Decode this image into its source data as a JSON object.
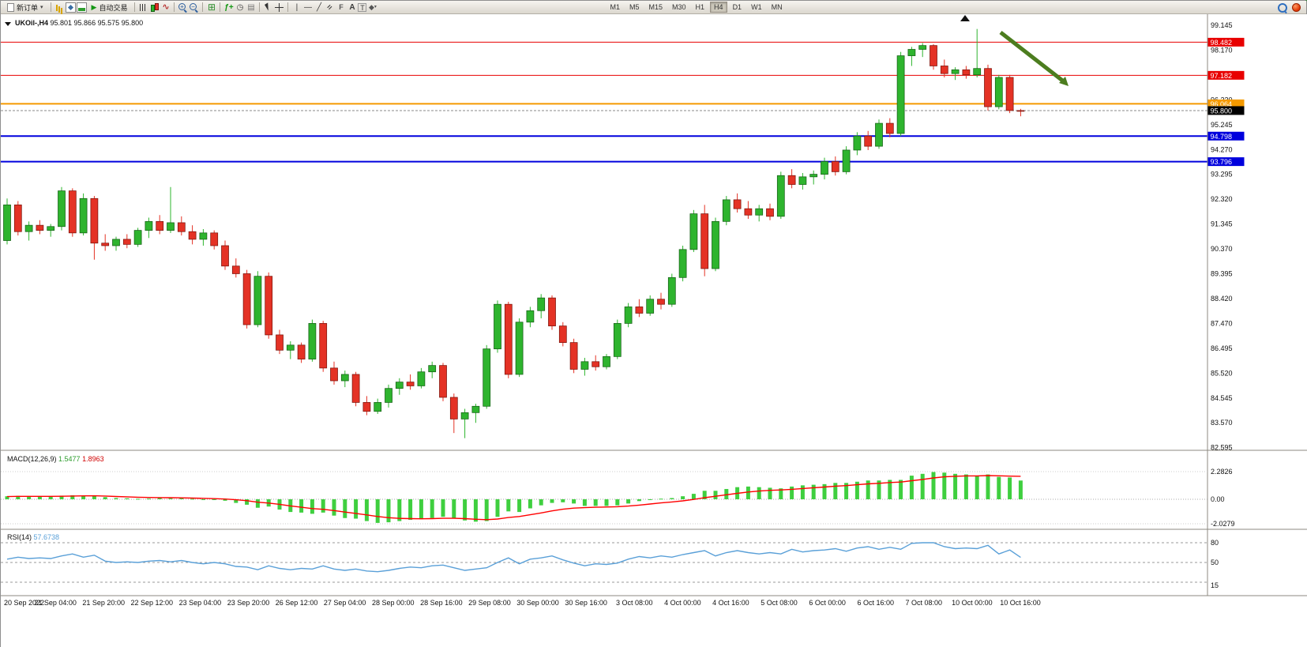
{
  "window": {
    "symbol_header": "UKOil-,H4",
    "ohlc_header": "95.801 95.866 95.575 95.800"
  },
  "toolbar": {
    "new_order_label": "新订单",
    "autotrading_label": "自动交易",
    "timeframes": [
      "M1",
      "M5",
      "M15",
      "M30",
      "H1",
      "H4",
      "D1",
      "W1",
      "MN"
    ],
    "active_timeframe": "H4",
    "icon_names": [
      "new-order-icon",
      "market-watch-icon",
      "navigator-icon",
      "terminal-icon",
      "autotrading-play-icon",
      "bar-chart-icon",
      "candlestick-chart-icon",
      "line-chart-icon",
      "zoom-in-icon",
      "zoom-out-icon",
      "tile-windows-icon",
      "indicators-icon",
      "periods-icon",
      "templates-icon",
      "cursor-icon",
      "crosshair-icon",
      "vertical-line-icon",
      "horizontal-line-icon",
      "trendline-icon",
      "channel-icon",
      "fibonacci-icon",
      "text-icon",
      "label-icon",
      "shapes-icon",
      "search-icon",
      "notification-icon"
    ]
  },
  "chart_data": {
    "type": "candlestick",
    "symbol": "UKOil-",
    "timeframe": "H4",
    "current_bar": {
      "open": "95.801",
      "high": "95.866",
      "low": "95.575",
      "close": "95.800"
    },
    "y_axis_labels": [
      "99.145",
      "98.170",
      "97.195",
      "96.220",
      "95.245",
      "94.270",
      "93.295",
      "92.320",
      "91.345",
      "90.370",
      "89.395",
      "88.420",
      "87.470",
      "86.495",
      "85.520",
      "84.545",
      "83.570",
      "82.595"
    ],
    "x_axis_labels": [
      "20 Sep 2022",
      "21 Sep 04:00",
      "21 Sep 20:00",
      "22 Sep 12:00",
      "23 Sep 04:00",
      "23 Sep 20:00",
      "26 Sep 12:00",
      "27 Sep 04:00",
      "28 Sep 00:00",
      "28 Sep 16:00",
      "29 Sep 08:00",
      "30 Sep 00:00",
      "30 Sep 16:00",
      "3 Oct 08:00",
      "4 Oct 00:00",
      "4 Oct 16:00",
      "5 Oct 08:00",
      "6 Oct 00:00",
      "6 Oct 16:00",
      "7 Oct 08:00",
      "10 Oct 00:00",
      "10 Oct 16:00"
    ],
    "hlines": [
      {
        "price": 98.482,
        "color": "#e80000",
        "width": 1
      },
      {
        "price": 97.182,
        "color": "#e80000",
        "width": 1
      },
      {
        "price": 96.064,
        "color": "#f59a00",
        "width": 2
      },
      {
        "price": 94.798,
        "color": "#0000dd",
        "width": 2
      },
      {
        "price": 93.796,
        "color": "#0000dd",
        "width": 2
      }
    ],
    "current_price": 95.8,
    "colors": {
      "up": "#2eb42e",
      "up_border": "#156015",
      "down": "#e43225",
      "down_border": "#7c140c",
      "macd_hist": "#3fcf3f",
      "macd_signal": "#ff0000",
      "rsi_line": "#5aa0d8",
      "arrow": "#4c7d1f"
    },
    "candles_ohlc": [
      [
        90.7,
        92.35,
        90.55,
        92.1
      ],
      [
        92.1,
        92.25,
        90.9,
        91.05
      ],
      [
        91.05,
        91.45,
        90.7,
        91.3
      ],
      [
        91.3,
        91.5,
        90.95,
        91.1
      ],
      [
        91.1,
        91.35,
        90.85,
        91.25
      ],
      [
        91.25,
        92.8,
        91.1,
        92.65
      ],
      [
        92.65,
        92.75,
        90.85,
        91.0
      ],
      [
        91.0,
        92.55,
        90.9,
        92.35
      ],
      [
        92.35,
        92.45,
        89.95,
        90.6
      ],
      [
        90.6,
        90.95,
        90.3,
        90.5
      ],
      [
        90.5,
        90.85,
        90.3,
        90.75
      ],
      [
        90.75,
        90.95,
        90.4,
        90.55
      ],
      [
        90.55,
        91.2,
        90.45,
        91.1
      ],
      [
        91.1,
        91.6,
        90.8,
        91.45
      ],
      [
        91.45,
        91.7,
        90.95,
        91.1
      ],
      [
        91.1,
        92.8,
        91.0,
        91.4
      ],
      [
        91.4,
        91.65,
        90.9,
        91.05
      ],
      [
        91.05,
        91.3,
        90.55,
        90.75
      ],
      [
        90.75,
        91.15,
        90.5,
        91.0
      ],
      [
        91.0,
        91.1,
        90.35,
        90.5
      ],
      [
        90.5,
        90.7,
        89.55,
        89.7
      ],
      [
        89.7,
        90.0,
        89.25,
        89.4
      ],
      [
        89.4,
        89.55,
        87.25,
        87.4
      ],
      [
        87.4,
        89.5,
        87.3,
        89.3
      ],
      [
        89.3,
        89.45,
        86.85,
        87.0
      ],
      [
        87.0,
        87.2,
        86.25,
        86.4
      ],
      [
        86.4,
        86.75,
        86.05,
        86.6
      ],
      [
        86.6,
        86.7,
        85.9,
        86.05
      ],
      [
        86.05,
        87.6,
        85.95,
        87.45
      ],
      [
        87.45,
        87.55,
        85.55,
        85.7
      ],
      [
        85.7,
        85.95,
        85.05,
        85.2
      ],
      [
        85.2,
        85.6,
        84.95,
        85.45
      ],
      [
        85.45,
        85.55,
        84.2,
        84.35
      ],
      [
        84.35,
        84.6,
        83.85,
        84.0
      ],
      [
        84.0,
        84.5,
        83.9,
        84.35
      ],
      [
        84.35,
        85.05,
        84.15,
        84.9
      ],
      [
        84.9,
        85.3,
        84.65,
        85.15
      ],
      [
        85.15,
        85.45,
        84.85,
        85.0
      ],
      [
        85.0,
        85.7,
        84.9,
        85.55
      ],
      [
        85.55,
        85.95,
        85.3,
        85.8
      ],
      [
        85.8,
        85.9,
        84.4,
        84.55
      ],
      [
        84.55,
        84.7,
        83.15,
        83.7
      ],
      [
        83.7,
        84.1,
        82.95,
        83.95
      ],
      [
        83.95,
        84.3,
        83.55,
        84.2
      ],
      [
        84.2,
        86.6,
        84.1,
        86.45
      ],
      [
        86.45,
        88.35,
        86.3,
        88.2
      ],
      [
        88.2,
        88.3,
        85.3,
        85.45
      ],
      [
        85.45,
        87.65,
        85.35,
        87.5
      ],
      [
        87.5,
        88.1,
        87.3,
        87.95
      ],
      [
        87.95,
        88.6,
        87.65,
        88.45
      ],
      [
        88.45,
        88.55,
        87.2,
        87.35
      ],
      [
        87.35,
        87.5,
        86.55,
        86.7
      ],
      [
        86.7,
        86.85,
        85.5,
        85.65
      ],
      [
        85.65,
        86.1,
        85.4,
        85.95
      ],
      [
        85.95,
        86.2,
        85.6,
        85.75
      ],
      [
        85.75,
        86.25,
        85.65,
        86.15
      ],
      [
        86.15,
        87.6,
        86.05,
        87.45
      ],
      [
        87.45,
        88.25,
        87.3,
        88.1
      ],
      [
        88.1,
        88.4,
        87.7,
        87.85
      ],
      [
        87.85,
        88.55,
        87.75,
        88.4
      ],
      [
        88.4,
        88.65,
        88.0,
        88.2
      ],
      [
        88.2,
        89.4,
        88.1,
        89.25
      ],
      [
        89.25,
        90.5,
        89.1,
        90.35
      ],
      [
        90.35,
        91.9,
        90.25,
        91.75
      ],
      [
        91.75,
        92.1,
        89.3,
        89.6
      ],
      [
        89.6,
        91.6,
        89.5,
        91.45
      ],
      [
        91.45,
        92.45,
        91.3,
        92.3
      ],
      [
        92.3,
        92.55,
        91.8,
        91.95
      ],
      [
        91.95,
        92.25,
        91.55,
        91.7
      ],
      [
        91.7,
        92.1,
        91.45,
        91.95
      ],
      [
        91.95,
        92.15,
        91.5,
        91.65
      ],
      [
        91.65,
        93.4,
        91.55,
        93.25
      ],
      [
        93.25,
        93.5,
        92.75,
        92.9
      ],
      [
        92.9,
        93.35,
        92.7,
        93.2
      ],
      [
        93.2,
        93.45,
        92.9,
        93.3
      ],
      [
        93.3,
        93.95,
        93.1,
        93.8
      ],
      [
        93.8,
        94.0,
        93.25,
        93.4
      ],
      [
        93.4,
        94.4,
        93.3,
        94.25
      ],
      [
        94.25,
        94.95,
        94.05,
        94.8
      ],
      [
        94.8,
        95.0,
        94.25,
        94.4
      ],
      [
        94.4,
        95.45,
        94.3,
        95.3
      ],
      [
        95.3,
        95.5,
        94.75,
        94.9
      ],
      [
        94.9,
        98.1,
        94.8,
        97.95
      ],
      [
        97.95,
        98.3,
        97.55,
        98.2
      ],
      [
        98.2,
        98.45,
        97.9,
        98.35
      ],
      [
        98.35,
        98.4,
        97.4,
        97.55
      ],
      [
        97.55,
        97.8,
        97.1,
        97.25
      ],
      [
        97.25,
        97.5,
        97.0,
        97.4
      ],
      [
        97.4,
        97.55,
        97.05,
        97.2
      ],
      [
        97.2,
        99.0,
        97.1,
        97.45
      ],
      [
        97.45,
        97.6,
        95.8,
        95.95
      ],
      [
        95.95,
        97.2,
        95.85,
        97.1
      ],
      [
        97.1,
        97.2,
        95.7,
        95.801
      ],
      [
        95.801,
        95.866,
        95.575,
        95.8
      ]
    ],
    "indicators": {
      "macd": {
        "label": "MACD(12,26,9)",
        "value_main": "1.5477",
        "value_signal": "1.8963",
        "axis_labels": [
          "2.2826",
          "0.00",
          "-2.0279"
        ],
        "histogram": [
          0.25,
          0.28,
          0.26,
          0.24,
          0.22,
          0.3,
          0.33,
          0.3,
          0.32,
          0.18,
          0.1,
          0.08,
          0.04,
          0.06,
          0.1,
          0.08,
          0.1,
          0.04,
          -0.02,
          -0.05,
          -0.12,
          -0.3,
          -0.45,
          -0.7,
          -0.6,
          -0.85,
          -1.05,
          -1.1,
          -1.2,
          -1.1,
          -1.35,
          -1.55,
          -1.6,
          -1.8,
          -1.95,
          -1.9,
          -1.8,
          -1.7,
          -1.65,
          -1.55,
          -1.45,
          -1.55,
          -1.75,
          -1.85,
          -1.8,
          -1.45,
          -1.0,
          -1.05,
          -0.75,
          -0.5,
          -0.3,
          -0.25,
          -0.35,
          -0.55,
          -0.55,
          -0.55,
          -0.5,
          -0.35,
          -0.15,
          -0.05,
          0.05,
          0.1,
          0.25,
          0.45,
          0.7,
          0.7,
          0.85,
          1.0,
          1.05,
          1.0,
          0.95,
          0.9,
          1.05,
          1.15,
          1.2,
          1.25,
          1.35,
          1.35,
          1.45,
          1.55,
          1.55,
          1.6,
          1.6,
          1.95,
          2.1,
          2.25,
          2.2,
          2.1,
          2.05,
          1.95,
          2.05,
          1.85,
          1.8,
          1.5477
        ],
        "signal": [
          0.22,
          0.24,
          0.24,
          0.24,
          0.24,
          0.25,
          0.27,
          0.28,
          0.29,
          0.27,
          0.23,
          0.2,
          0.17,
          0.15,
          0.14,
          0.13,
          0.12,
          0.1,
          0.08,
          0.05,
          0.02,
          -0.04,
          -0.12,
          -0.24,
          -0.31,
          -0.42,
          -0.55,
          -0.66,
          -0.77,
          -0.83,
          -0.93,
          -1.06,
          -1.17,
          -1.29,
          -1.42,
          -1.52,
          -1.58,
          -1.6,
          -1.61,
          -1.6,
          -1.57,
          -1.57,
          -1.6,
          -1.65,
          -1.68,
          -1.63,
          -1.51,
          -1.42,
          -1.28,
          -1.13,
          -0.96,
          -0.82,
          -0.73,
          -0.69,
          -0.66,
          -0.64,
          -0.61,
          -0.56,
          -0.48,
          -0.39,
          -0.3,
          -0.22,
          -0.13,
          -0.01,
          0.13,
          0.25,
          0.37,
          0.49,
          0.6,
          0.68,
          0.74,
          0.77,
          0.82,
          0.89,
          0.95,
          1.01,
          1.08,
          1.13,
          1.2,
          1.27,
          1.32,
          1.38,
          1.42,
          1.53,
          1.64,
          1.76,
          1.85,
          1.9,
          1.93,
          1.93,
          1.96,
          1.94,
          1.91,
          1.8963
        ]
      },
      "rsi": {
        "label": "RSI(14)",
        "value": "57.6738",
        "axis_labels": [
          "80",
          "50",
          "15"
        ],
        "levels": [
          80,
          50,
          20
        ],
        "values": [
          55,
          58,
          56,
          57,
          56,
          60,
          63,
          58,
          61,
          52,
          50,
          51,
          50,
          52,
          53,
          51,
          53,
          50,
          48,
          50,
          48,
          44,
          43,
          39,
          45,
          41,
          39,
          41,
          40,
          45,
          40,
          38,
          40,
          37,
          36,
          38,
          41,
          43,
          42,
          45,
          46,
          42,
          38,
          40,
          42,
          50,
          57,
          48,
          55,
          57,
          60,
          54,
          49,
          45,
          48,
          47,
          49,
          55,
          59,
          57,
          60,
          58,
          62,
          65,
          68,
          60,
          65,
          68,
          65,
          63,
          65,
          63,
          70,
          66,
          68,
          69,
          71,
          67,
          72,
          74,
          70,
          73,
          70,
          79,
          80,
          80,
          74,
          71,
          72,
          71,
          76,
          63,
          69,
          57.6738
        ]
      }
    }
  }
}
